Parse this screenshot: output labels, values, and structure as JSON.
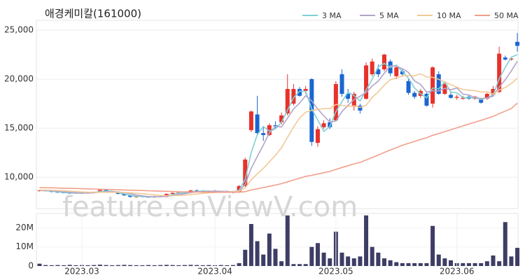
{
  "watermark": "feature.enViewV.com",
  "chart_data": [
    {
      "type": "candlestick",
      "title": "애경케미칼(161000)",
      "up_color": "#e8312a",
      "down_color": "#1a66d2",
      "open": [
        8600,
        8650,
        8600,
        8500,
        8450,
        8400,
        8350,
        8400,
        8350,
        8450,
        8500,
        8700,
        8550,
        8450,
        8300,
        8150,
        8000,
        8050,
        8000,
        7950,
        8050,
        8000,
        8300,
        8400,
        8450,
        8400,
        8650,
        8600,
        8550,
        8600,
        8500,
        8550,
        8500,
        8450,
        9100,
        14800,
        16400,
        14500,
        14300,
        15300,
        15600,
        16500,
        17500,
        19000,
        18800,
        20000,
        13500,
        15100,
        15600,
        15800,
        20500,
        18500,
        17200,
        17300,
        18000,
        20500,
        21000,
        21000,
        21800,
        20300,
        20800,
        19800,
        18600,
        18300,
        18500,
        17500,
        20500,
        18500,
        18400,
        18100,
        18000,
        18200,
        18000,
        17900,
        18000,
        18400,
        18700,
        22200,
        22000,
        23800
      ],
      "high": [
        8700,
        8700,
        8650,
        8550,
        8500,
        8450,
        8450,
        8450,
        8500,
        8550,
        8800,
        8750,
        8600,
        8500,
        8350,
        8200,
        8100,
        8100,
        8050,
        8100,
        8150,
        8350,
        8450,
        8500,
        8550,
        8700,
        8750,
        8700,
        8650,
        8700,
        8600,
        8650,
        8600,
        9200,
        12000,
        16800,
        18300,
        15200,
        15500,
        15700,
        16600,
        20500,
        19500,
        19200,
        19300,
        20100,
        15200,
        15800,
        16000,
        19800,
        21000,
        19000,
        18700,
        17500,
        21700,
        22100,
        21500,
        22600,
        22000,
        21300,
        21000,
        20000,
        18800,
        19000,
        18700,
        21300,
        20800,
        19700,
        18700,
        18400,
        18300,
        18400,
        18300,
        18100,
        18600,
        19300,
        23300,
        22400,
        22200,
        24700
      ],
      "low": [
        8550,
        8550,
        8450,
        8400,
        8350,
        8300,
        8300,
        8300,
        8300,
        8400,
        8450,
        8500,
        8400,
        8250,
        8100,
        7900,
        7900,
        7950,
        7900,
        7900,
        7950,
        7950,
        8200,
        8300,
        8350,
        8350,
        8500,
        8500,
        8450,
        8450,
        8400,
        8450,
        8350,
        8400,
        9000,
        14600,
        14300,
        13700,
        14200,
        14900,
        15400,
        16300,
        17300,
        18200,
        18500,
        13200,
        13100,
        14900,
        14900,
        15700,
        18200,
        17600,
        16800,
        16500,
        17900,
        20300,
        20200,
        20800,
        20300,
        20000,
        20300,
        18400,
        18000,
        18100,
        17200,
        17100,
        18400,
        18400,
        18000,
        17900,
        17900,
        17900,
        17900,
        17500,
        17900,
        18200,
        18600,
        21900,
        21900,
        22800
      ],
      "close": [
        8650,
        8600,
        8500,
        8450,
        8400,
        8350,
        8400,
        8350,
        8450,
        8500,
        8700,
        8550,
        8450,
        8300,
        8150,
        8000,
        8050,
        8000,
        7950,
        8050,
        8000,
        8300,
        8400,
        8450,
        8400,
        8650,
        8600,
        8550,
        8600,
        8500,
        8550,
        8500,
        8450,
        9100,
        11800,
        16700,
        14500,
        14300,
        15300,
        15200,
        16300,
        19000,
        19000,
        18300,
        19000,
        13600,
        14900,
        15500,
        15100,
        19500,
        18500,
        18000,
        18500,
        16800,
        21400,
        21800,
        20500,
        22500,
        20600,
        21200,
        20500,
        18600,
        18200,
        18800,
        17300,
        21200,
        18500,
        19500,
        18100,
        18200,
        18100,
        18000,
        18200,
        17600,
        18500,
        19000,
        22600,
        22000,
        22100,
        23400
      ],
      "series": [
        {
          "name": "3 MA",
          "color": "#7fd0d6",
          "values": [
            8650,
            8630,
            8580,
            8520,
            8450,
            8400,
            8380,
            8370,
            8400,
            8430,
            8550,
            8580,
            8570,
            8430,
            8300,
            8150,
            8070,
            8020,
            8000,
            8000,
            8000,
            8120,
            8230,
            8380,
            8420,
            8500,
            8550,
            8600,
            8580,
            8550,
            8550,
            8520,
            8500,
            8680,
            9780,
            12530,
            14330,
            15170,
            14700,
            14930,
            15600,
            16830,
            18100,
            18770,
            18770,
            16970,
            15830,
            14670,
            15170,
            16700,
            17700,
            18670,
            18330,
            17770,
            18900,
            20000,
            21230,
            21600,
            21200,
            21430,
            20770,
            20100,
            19100,
            18530,
            18100,
            19100,
            19000,
            19730,
            18700,
            18600,
            18130,
            18100,
            18100,
            17930,
            18100,
            18370,
            20030,
            21200,
            22230,
            22500
          ]
        },
        {
          "name": "5 MA",
          "color": "#b3a3c9",
          "values": [
            8650,
            8640,
            8610,
            8570,
            8520,
            8460,
            8420,
            8390,
            8390,
            8410,
            8480,
            8510,
            8530,
            8500,
            8430,
            8310,
            8190,
            8100,
            8030,
            8010,
            8010,
            8060,
            8140,
            8240,
            8310,
            8440,
            8500,
            8530,
            8560,
            8580,
            8560,
            8540,
            8520,
            8620,
            9280,
            10910,
            12110,
            13280,
            14520,
            15200,
            15120,
            16020,
            16960,
            17560,
            18320,
            17780,
            16960,
            16260,
            15620,
            15720,
            16700,
            17320,
            17920,
            18260,
            18640,
            19300,
            19800,
            20600,
            21360,
            21320,
            21060,
            20680,
            19820,
            19460,
            18680,
            18820,
            18800,
            19060,
            18920,
            19100,
            18480,
            18380,
            18120,
            18020,
            18080,
            18260,
            19180,
            19940,
            20840,
            21820
          ]
        },
        {
          "name": "10 MA",
          "color": "#f2c995",
          "values": [
            8700,
            8690,
            8670,
            8640,
            8610,
            8580,
            8540,
            8500,
            8470,
            8460,
            8470,
            8460,
            8470,
            8460,
            8440,
            8410,
            8370,
            8320,
            8270,
            8200,
            8140,
            8120,
            8120,
            8140,
            8170,
            8230,
            8290,
            8350,
            8410,
            8450,
            8480,
            8500,
            8510,
            8580,
            8920,
            9730,
            10330,
            10910,
            11570,
            12240,
            13010,
            14060,
            15120,
            16040,
            16630,
            16820,
            16890,
            17010,
            16990,
            17420,
            17330,
            17230,
            17280,
            17120,
            17350,
            18140,
            18700,
            19400,
            19950,
            20120,
            20320,
            20380,
            20330,
            20560,
            20210,
            20190,
            19990,
            19690,
            19440,
            19180,
            18940,
            18880,
            18820,
            18690,
            18700,
            18480,
            18890,
            19140,
            19550,
            20080
          ]
        },
        {
          "name": "50 MA",
          "color": "#f29f8a",
          "values": [
            8950,
            8930,
            8920,
            8900,
            8880,
            8860,
            8850,
            8830,
            8810,
            8800,
            8780,
            8760,
            8740,
            8720,
            8700,
            8680,
            8660,
            8640,
            8620,
            8600,
            8580,
            8560,
            8540,
            8520,
            8510,
            8500,
            8490,
            8480,
            8470,
            8460,
            8460,
            8460,
            8460,
            8470,
            8530,
            8700,
            8820,
            8940,
            9070,
            9200,
            9340,
            9530,
            9720,
            9900,
            10090,
            10190,
            10320,
            10460,
            10590,
            10800,
            10990,
            11170,
            11360,
            11510,
            11760,
            12010,
            12250,
            12530,
            12770,
            13020,
            13260,
            13460,
            13650,
            13850,
            14020,
            14270,
            14450,
            14650,
            14840,
            15040,
            15230,
            15420,
            15610,
            15800,
            16000,
            16200,
            16480,
            16740,
            17000,
            17550
          ]
        }
      ],
      "ylim": [
        6800,
        26000
      ],
      "yticks": [
        {
          "value": 10000,
          "label": "10,000"
        },
        {
          "value": 15000,
          "label": "15,000"
        },
        {
          "value": 20000,
          "label": "20,000"
        },
        {
          "value": 25000,
          "label": "25,000"
        }
      ],
      "grid": true,
      "legend": "top-right"
    },
    {
      "type": "bar",
      "color": "#3e3d66",
      "categories": [
        null,
        null,
        null,
        null,
        null,
        null,
        null,
        "2023.03",
        null,
        null,
        null,
        null,
        null,
        null,
        null,
        null,
        null,
        null,
        null,
        null,
        null,
        null,
        null,
        null,
        null,
        null,
        null,
        null,
        null,
        "2023.04",
        null,
        null,
        null,
        null,
        null,
        null,
        null,
        null,
        null,
        null,
        null,
        null,
        null,
        null,
        null,
        null,
        null,
        null,
        null,
        "2023.05",
        null,
        null,
        null,
        null,
        null,
        null,
        null,
        null,
        null,
        null,
        null,
        null,
        null,
        null,
        null,
        null,
        null,
        null,
        null,
        "2023.06",
        null,
        null,
        null,
        null,
        null,
        null,
        null,
        null,
        null,
        null
      ],
      "values": [
        1200000,
        500000,
        400000,
        500000,
        400000,
        600000,
        400000,
        500000,
        400000,
        500000,
        700000,
        500000,
        400000,
        500000,
        600000,
        500000,
        400000,
        400000,
        500000,
        400000,
        500000,
        600000,
        500000,
        400000,
        500000,
        600000,
        500000,
        400000,
        500000,
        400000,
        500000,
        400000,
        500000,
        1500000,
        8500000,
        22000000,
        13000000,
        6000000,
        17000000,
        9000000,
        2500000,
        26500000,
        1000000,
        1000000,
        1000000,
        10000000,
        12000000,
        7000000,
        4000000,
        18000000,
        7000000,
        5000000,
        4000000,
        5000000,
        26500000,
        10000000,
        7000000,
        4000000,
        3000000,
        2000000,
        1500000,
        1500000,
        1500000,
        1500000,
        1500000,
        21000000,
        6000000,
        4000000,
        3000000,
        1500000,
        1500000,
        1500000,
        1500000,
        1500000,
        2500000,
        5500000,
        2500000,
        23000000,
        5000000,
        9500000
      ],
      "ylim": [
        0,
        27500000
      ],
      "yticks": [
        0,
        {
          "value": 10000000,
          "label": "10M"
        },
        {
          "value": 20000000,
          "label": "20M"
        }
      ]
    }
  ]
}
